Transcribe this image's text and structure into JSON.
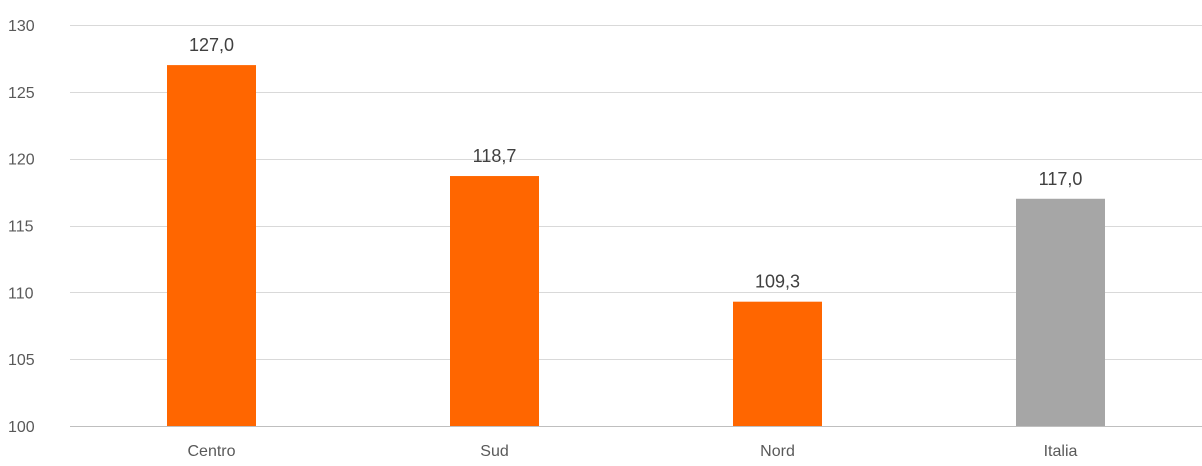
{
  "chart_data": {
    "type": "bar",
    "title": "",
    "xlabel": "",
    "ylabel": "",
    "categories": [
      "Centro",
      "Sud",
      "Nord",
      "Italia"
    ],
    "values": [
      127.0,
      118.7,
      109.3,
      117.0
    ],
    "data_labels": [
      "127,0",
      "118,7",
      "109,3",
      "117,0"
    ],
    "bar_colors": [
      "#ff6600",
      "#ff6600",
      "#ff6600",
      "#a6a6a6"
    ],
    "ylim": [
      100,
      130
    ],
    "yticks": [
      100,
      105,
      110,
      115,
      120,
      125,
      130
    ],
    "ytick_labels": [
      "100",
      "105",
      "110",
      "115",
      "120",
      "125",
      "130"
    ],
    "grid": true,
    "legend": "none"
  }
}
